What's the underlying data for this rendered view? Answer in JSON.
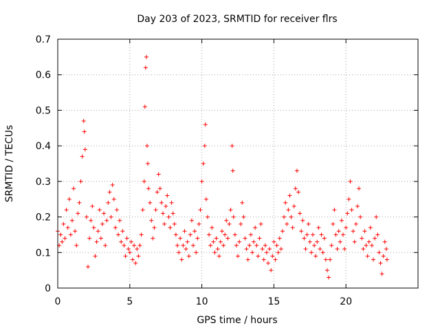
{
  "chart_data": {
    "type": "scatter",
    "title": "Day 203 of 2023, SRMTID for receiver flrs",
    "xlabel": "GPS time / hours",
    "ylabel": "SRMTID / TECUs",
    "xlim": [
      0,
      25
    ],
    "ylim": [
      0,
      0.7
    ],
    "x_ticks": [
      0,
      5,
      10,
      15,
      20
    ],
    "x_tick_labels": [
      "0",
      "5",
      "10",
      "15",
      "20"
    ],
    "y_ticks": [
      0,
      0.1,
      0.2,
      0.3,
      0.4,
      0.5,
      0.6,
      0.7
    ],
    "y_tick_labels": [
      "0",
      "0.1",
      "0.2",
      "0.3",
      "0.4",
      "0.5",
      "0.6",
      "0.7"
    ],
    "grid": true,
    "marker": "plus",
    "color": "#ff0000",
    "series": [
      {
        "name": "SRMTID",
        "points": [
          [
            0.0,
            0.16
          ],
          [
            0.1,
            0.12
          ],
          [
            0.2,
            0.15
          ],
          [
            0.3,
            0.13
          ],
          [
            0.4,
            0.18
          ],
          [
            0.5,
            0.14
          ],
          [
            0.6,
            0.22
          ],
          [
            0.7,
            0.17
          ],
          [
            0.8,
            0.25
          ],
          [
            0.9,
            0.15
          ],
          [
            1.0,
            0.19
          ],
          [
            1.1,
            0.28
          ],
          [
            1.2,
            0.16
          ],
          [
            1.3,
            0.12
          ],
          [
            1.4,
            0.21
          ],
          [
            1.5,
            0.24
          ],
          [
            1.6,
            0.3
          ],
          [
            1.7,
            0.37
          ],
          [
            1.8,
            0.47
          ],
          [
            1.85,
            0.44
          ],
          [
            1.9,
            0.39
          ],
          [
            2.0,
            0.2
          ],
          [
            2.1,
            0.06
          ],
          [
            2.2,
            0.14
          ],
          [
            2.3,
            0.19
          ],
          [
            2.4,
            0.23
          ],
          [
            2.5,
            0.17
          ],
          [
            2.6,
            0.09
          ],
          [
            2.7,
            0.13
          ],
          [
            2.8,
            0.16
          ],
          [
            2.9,
            0.22
          ],
          [
            3.0,
            0.14
          ],
          [
            3.1,
            0.18
          ],
          [
            3.2,
            0.21
          ],
          [
            3.3,
            0.12
          ],
          [
            3.4,
            0.19
          ],
          [
            3.5,
            0.24
          ],
          [
            3.6,
            0.27
          ],
          [
            3.7,
            0.2
          ],
          [
            3.8,
            0.29
          ],
          [
            3.9,
            0.25
          ],
          [
            4.0,
            0.17
          ],
          [
            4.1,
            0.22
          ],
          [
            4.2,
            0.15
          ],
          [
            4.3,
            0.19
          ],
          [
            4.4,
            0.13
          ],
          [
            4.5,
            0.16
          ],
          [
            4.6,
            0.12
          ],
          [
            4.7,
            0.09
          ],
          [
            4.8,
            0.14
          ],
          [
            4.9,
            0.11
          ],
          [
            5.0,
            0.1
          ],
          [
            5.1,
            0.13
          ],
          [
            5.2,
            0.08
          ],
          [
            5.3,
            0.12
          ],
          [
            5.4,
            0.07
          ],
          [
            5.5,
            0.11
          ],
          [
            5.6,
            0.09
          ],
          [
            5.7,
            0.12
          ],
          [
            5.8,
            0.15
          ],
          [
            5.9,
            0.22
          ],
          [
            6.0,
            0.3
          ],
          [
            6.05,
            0.51
          ],
          [
            6.1,
            0.62
          ],
          [
            6.15,
            0.65
          ],
          [
            6.2,
            0.4
          ],
          [
            6.25,
            0.35
          ],
          [
            6.3,
            0.28
          ],
          [
            6.4,
            0.24
          ],
          [
            6.5,
            0.19
          ],
          [
            6.6,
            0.14
          ],
          [
            6.7,
            0.17
          ],
          [
            6.8,
            0.22
          ],
          [
            6.9,
            0.27
          ],
          [
            7.0,
            0.32
          ],
          [
            7.1,
            0.28
          ],
          [
            7.2,
            0.24
          ],
          [
            7.3,
            0.21
          ],
          [
            7.4,
            0.18
          ],
          [
            7.5,
            0.23
          ],
          [
            7.6,
            0.26
          ],
          [
            7.7,
            0.2
          ],
          [
            7.8,
            0.17
          ],
          [
            7.9,
            0.24
          ],
          [
            8.0,
            0.21
          ],
          [
            8.1,
            0.18
          ],
          [
            8.2,
            0.15
          ],
          [
            8.3,
            0.12
          ],
          [
            8.4,
            0.1
          ],
          [
            8.5,
            0.14
          ],
          [
            8.6,
            0.08
          ],
          [
            8.7,
            0.12
          ],
          [
            8.8,
            0.16
          ],
          [
            8.9,
            0.11
          ],
          [
            9.0,
            0.13
          ],
          [
            9.1,
            0.09
          ],
          [
            9.2,
            0.15
          ],
          [
            9.3,
            0.19
          ],
          [
            9.4,
            0.12
          ],
          [
            9.5,
            0.16
          ],
          [
            9.6,
            0.1
          ],
          [
            9.7,
            0.14
          ],
          [
            9.8,
            0.18
          ],
          [
            9.9,
            0.22
          ],
          [
            10.0,
            0.3
          ],
          [
            10.1,
            0.35
          ],
          [
            10.2,
            0.4
          ],
          [
            10.25,
            0.46
          ],
          [
            10.3,
            0.25
          ],
          [
            10.4,
            0.2
          ],
          [
            10.5,
            0.15
          ],
          [
            10.6,
            0.12
          ],
          [
            10.7,
            0.17
          ],
          [
            10.8,
            0.13
          ],
          [
            10.9,
            0.1
          ],
          [
            11.0,
            0.14
          ],
          [
            11.1,
            0.11
          ],
          [
            11.2,
            0.09
          ],
          [
            11.3,
            0.13
          ],
          [
            11.4,
            0.16
          ],
          [
            11.5,
            0.12
          ],
          [
            11.6,
            0.15
          ],
          [
            11.7,
            0.19
          ],
          [
            11.8,
            0.14
          ],
          [
            11.9,
            0.18
          ],
          [
            12.0,
            0.22
          ],
          [
            12.1,
            0.4
          ],
          [
            12.15,
            0.33
          ],
          [
            12.2,
            0.2
          ],
          [
            12.3,
            0.15
          ],
          [
            12.4,
            0.12
          ],
          [
            12.5,
            0.09
          ],
          [
            12.6,
            0.13
          ],
          [
            12.7,
            0.18
          ],
          [
            12.8,
            0.24
          ],
          [
            12.9,
            0.2
          ],
          [
            13.0,
            0.14
          ],
          [
            13.1,
            0.11
          ],
          [
            13.2,
            0.08
          ],
          [
            13.3,
            0.12
          ],
          [
            13.4,
            0.15
          ],
          [
            13.5,
            0.1
          ],
          [
            13.6,
            0.13
          ],
          [
            13.7,
            0.17
          ],
          [
            13.8,
            0.12
          ],
          [
            13.9,
            0.09
          ],
          [
            14.0,
            0.14
          ],
          [
            14.1,
            0.18
          ],
          [
            14.2,
            0.11
          ],
          [
            14.3,
            0.08
          ],
          [
            14.4,
            0.12
          ],
          [
            14.5,
            0.1
          ],
          [
            14.6,
            0.07
          ],
          [
            14.7,
            0.11
          ],
          [
            14.8,
            0.05
          ],
          [
            14.9,
            0.09
          ],
          [
            15.0,
            0.13
          ],
          [
            15.1,
            0.08
          ],
          [
            15.2,
            0.12
          ],
          [
            15.3,
            0.1
          ],
          [
            15.4,
            0.14
          ],
          [
            15.5,
            0.11
          ],
          [
            15.6,
            0.16
          ],
          [
            15.7,
            0.2
          ],
          [
            15.8,
            0.24
          ],
          [
            15.9,
            0.18
          ],
          [
            16.0,
            0.22
          ],
          [
            16.1,
            0.26
          ],
          [
            16.2,
            0.2
          ],
          [
            16.3,
            0.17
          ],
          [
            16.4,
            0.23
          ],
          [
            16.5,
            0.28
          ],
          [
            16.6,
            0.33
          ],
          [
            16.7,
            0.27
          ],
          [
            16.8,
            0.21
          ],
          [
            16.9,
            0.16
          ],
          [
            17.0,
            0.19
          ],
          [
            17.1,
            0.14
          ],
          [
            17.2,
            0.11
          ],
          [
            17.3,
            0.15
          ],
          [
            17.4,
            0.18
          ],
          [
            17.5,
            0.13
          ],
          [
            17.6,
            0.1
          ],
          [
            17.7,
            0.15
          ],
          [
            17.8,
            0.12
          ],
          [
            17.9,
            0.09
          ],
          [
            18.0,
            0.13
          ],
          [
            18.1,
            0.17
          ],
          [
            18.2,
            0.11
          ],
          [
            18.3,
            0.15
          ],
          [
            18.4,
            0.1
          ],
          [
            18.5,
            0.14
          ],
          [
            18.6,
            0.08
          ],
          [
            18.7,
            0.05
          ],
          [
            18.8,
            0.03
          ],
          [
            18.9,
            0.08
          ],
          [
            19.0,
            0.12
          ],
          [
            19.1,
            0.18
          ],
          [
            19.2,
            0.22
          ],
          [
            19.3,
            0.15
          ],
          [
            19.4,
            0.11
          ],
          [
            19.5,
            0.16
          ],
          [
            19.6,
            0.13
          ],
          [
            19.7,
            0.19
          ],
          [
            19.8,
            0.15
          ],
          [
            19.9,
            0.11
          ],
          [
            20.0,
            0.17
          ],
          [
            20.1,
            0.21
          ],
          [
            20.2,
            0.25
          ],
          [
            20.3,
            0.3
          ],
          [
            20.4,
            0.22
          ],
          [
            20.5,
            0.16
          ],
          [
            20.6,
            0.13
          ],
          [
            20.7,
            0.18
          ],
          [
            20.8,
            0.23
          ],
          [
            20.9,
            0.28
          ],
          [
            21.0,
            0.2
          ],
          [
            21.1,
            0.14
          ],
          [
            21.2,
            0.11
          ],
          [
            21.3,
            0.16
          ],
          [
            21.4,
            0.12
          ],
          [
            21.5,
            0.09
          ],
          [
            21.6,
            0.13
          ],
          [
            21.7,
            0.17
          ],
          [
            21.8,
            0.12
          ],
          [
            21.9,
            0.08
          ],
          [
            22.0,
            0.14
          ],
          [
            22.1,
            0.2
          ],
          [
            22.2,
            0.15
          ],
          [
            22.3,
            0.1
          ],
          [
            22.4,
            0.07
          ],
          [
            22.5,
            0.04
          ],
          [
            22.6,
            0.09
          ],
          [
            22.7,
            0.13
          ],
          [
            22.8,
            0.11
          ],
          [
            22.85,
            0.08
          ]
        ]
      }
    ]
  }
}
